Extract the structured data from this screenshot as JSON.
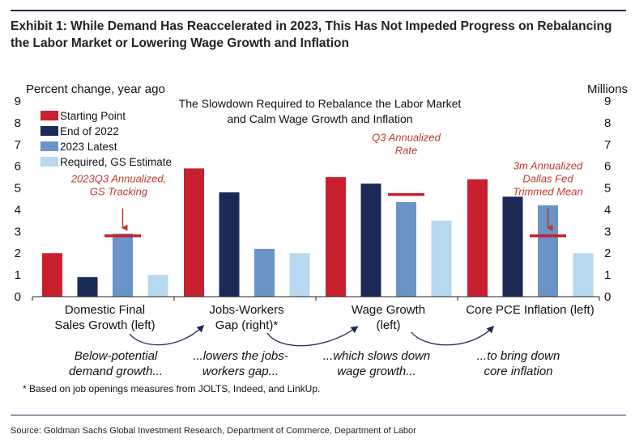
{
  "exhibit_title": "Exhibit 1: While Demand Has Reaccelerated in 2023, This Has Not Impeded Progress on Rebalancing the Labor Market or Lowering Wage Growth and Inflation",
  "footnote": "* Based on job openings measures from JOLTS, Indeed, and LinkUp.",
  "source": "Source: Goldman Sachs Global Investment Research, Department of Commerce, Department of Labor",
  "colors": {
    "starting_point": "#c8202f",
    "end_2022": "#1b2a57",
    "latest_2023": "#6a93c6",
    "required": "#b6d8f1",
    "annotation": "#c0392b",
    "marker": "#c8202f",
    "arrow": "#1b2a57"
  },
  "chart_data": {
    "type": "bar",
    "title": "The Slowdown Required to Rebalance the Labor Market and Calm Wage Growth and Inflation",
    "title_lines": [
      "The Slowdown Required to Rebalance the Labor Market",
      "and Calm Wage Growth and Inflation"
    ],
    "ylabel_left": "Percent change, year ago",
    "ylabel_right": "Millions",
    "ylim": [
      0,
      9
    ],
    "yticks": [
      0,
      1,
      2,
      3,
      4,
      5,
      6,
      7,
      8,
      9
    ],
    "legend_position": "top-left",
    "categories": [
      [
        "Domestic Final",
        "Sales Growth (left)"
      ],
      [
        "Jobs-Workers",
        "Gap (right)*"
      ],
      [
        "Wage Growth",
        "(left)"
      ],
      [
        "Core PCE Inflation (left)"
      ]
    ],
    "series": [
      {
        "name": "Starting Point",
        "values": [
          2.0,
          5.9,
          5.5,
          5.4
        ]
      },
      {
        "name": "End of 2022",
        "values": [
          0.9,
          4.8,
          5.2,
          4.6
        ]
      },
      {
        "name": "2023 Latest",
        "values": [
          2.9,
          2.2,
          4.35,
          4.2
        ]
      },
      {
        "name": "Required, GS Estimate",
        "values": [
          1.0,
          2.0,
          3.5,
          2.0
        ]
      }
    ],
    "markers": [
      {
        "category_index": 0,
        "value": 2.8,
        "label_lines": [
          "2023Q3 Annualized,",
          "GS Tracking"
        ]
      },
      {
        "category_index": 2,
        "value": 4.7,
        "label_lines": [
          "Q3 Annualized",
          "Rate"
        ]
      },
      {
        "category_index": 3,
        "value": 2.8,
        "label_lines": [
          "3m Annualized",
          "Dallas Fed",
          "Trimmed Mean"
        ]
      }
    ],
    "flow_captions": [
      [
        "Below-potential",
        "demand growth..."
      ],
      [
        "...lowers the jobs-",
        "workers gap..."
      ],
      [
        "...which slows down",
        "wage growth..."
      ],
      [
        "...to bring down",
        "core inflation"
      ]
    ],
    "grid": false
  }
}
